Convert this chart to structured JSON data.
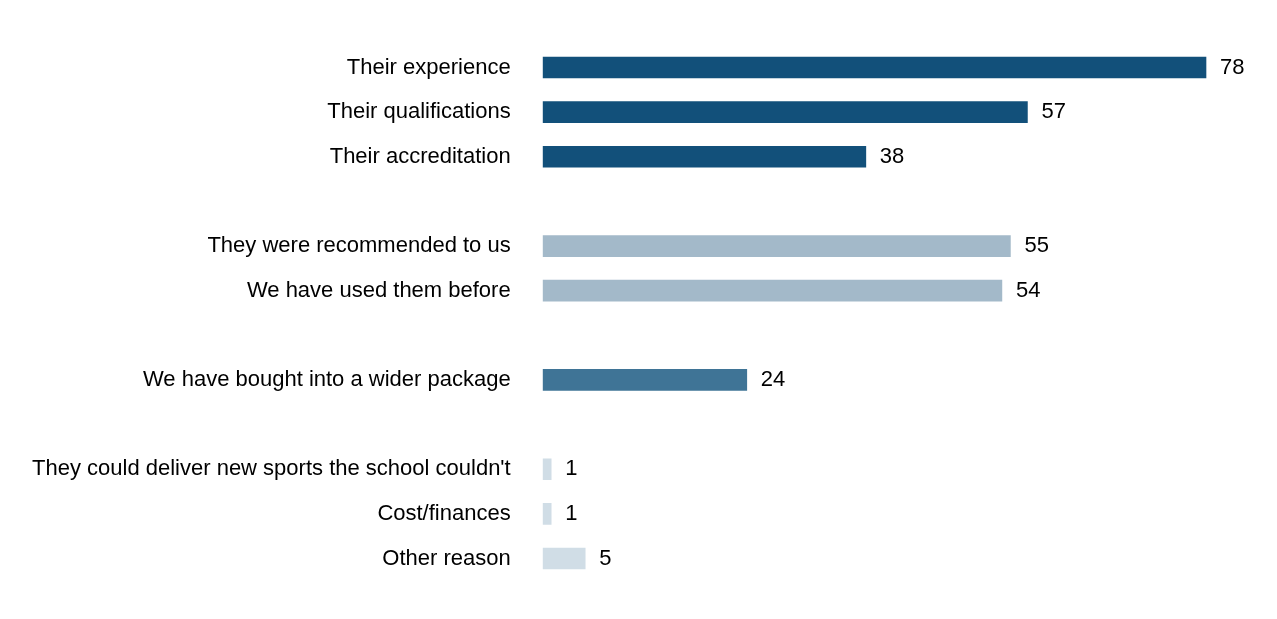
{
  "chart_data": {
    "type": "bar",
    "orientation": "horizontal",
    "data_labels": true,
    "categories": [
      "Their experience",
      "Their qualifications",
      "Their accreditation",
      null,
      "They were recommended to us",
      "We have used them before",
      null,
      "We have bought into a wider package",
      null,
      "They could deliver new sports the school couldn't",
      "Cost/finances",
      "Other reason"
    ],
    "values": [
      78,
      57,
      38,
      null,
      55,
      54,
      null,
      24,
      null,
      1,
      1,
      5
    ],
    "colors": [
      "#12507a",
      "#12507a",
      "#12507a",
      "#ffffff",
      "#a3b9c9",
      "#a3b9c9",
      "#ffffff",
      "#3f7496",
      "#ffffff",
      "#d0dde6",
      "#d0dde6",
      "#d0dde6"
    ]
  }
}
